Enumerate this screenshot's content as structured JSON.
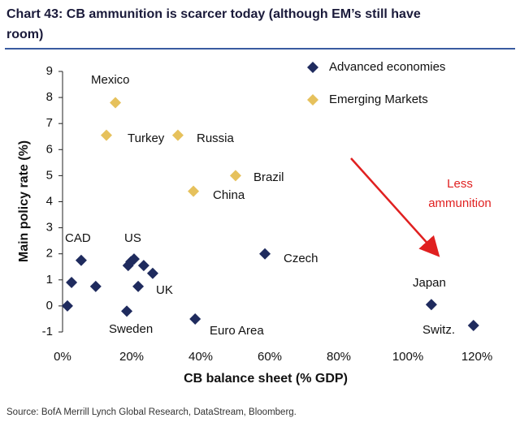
{
  "title": "Chart 43: CB ammunition is scarcer today (although EM’s still have room)",
  "source": "Source:  BofA Merrill Lynch Global Research, DataStream, Bloomberg.",
  "chart_data": {
    "type": "scatter",
    "x_label": "CB balance sheet (% GDP)",
    "y_label": "Main policy rate (%)",
    "xlim": [
      0,
      120
    ],
    "ylim": [
      -1,
      9
    ],
    "xticks": [
      {
        "value": 0,
        "label": "0%"
      },
      {
        "value": 20,
        "label": "20%"
      },
      {
        "value": 40,
        "label": "40%"
      },
      {
        "value": 60,
        "label": "60%"
      },
      {
        "value": 80,
        "label": "80%"
      },
      {
        "value": 100,
        "label": "100%"
      },
      {
        "value": 120,
        "label": "120%"
      }
    ],
    "yticks": [
      -1,
      0,
      1,
      2,
      3,
      4,
      5,
      6,
      7,
      8,
      9
    ],
    "legend": "top-right",
    "series": [
      {
        "name": "Advanced economies",
        "color": "#1f2b5e",
        "x": [
          1.4,
          2.6,
          5.4,
          9.6,
          18.6,
          19,
          19.8,
          20.7,
          23.5,
          26.1,
          21.9,
          38.4,
          58.6,
          106.8,
          119
        ],
        "values": [
          0,
          0.9,
          1.75,
          0.75,
          -0.2,
          1.55,
          1.7,
          1.8,
          1.55,
          1.25,
          0.75,
          -0.5,
          2,
          0.05,
          -0.75
        ]
      },
      {
        "name": "Emerging  Markets",
        "color": "#e6c15c",
        "x": [
          15.3,
          12.7,
          33.4,
          50.1,
          37.9
        ],
        "values": [
          7.8,
          6.55,
          6.55,
          5,
          4.4
        ]
      }
    ],
    "annotations": [
      "Mexico",
      "Turkey",
      "Russia",
      "Brazil",
      "China",
      "CAD",
      "US",
      "UK",
      "Sweden",
      "Euro Area",
      "Czech",
      "Japan",
      "Switz.",
      {
        "lines": [
          "Less",
          "ammunition"
        ]
      }
    ]
  }
}
